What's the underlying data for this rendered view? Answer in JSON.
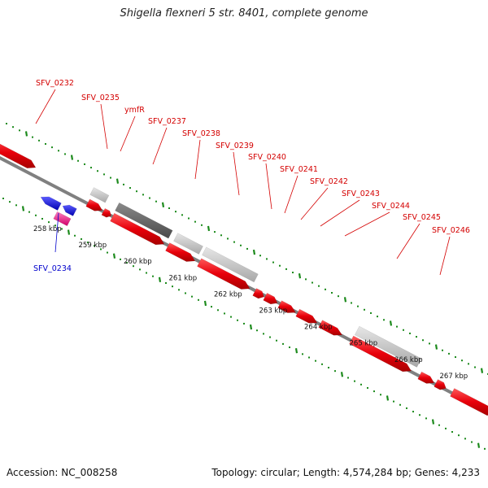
{
  "header": {
    "title": "Shigella flexneri 5 str. 8401, complete genome"
  },
  "footer": {
    "accession": "Accession: NC_008258",
    "stats": "Topology: circular; Length: 4,574,284 bp; Genes: 4,233"
  },
  "colors": {
    "gene_forward": "#e8000b",
    "gene_reverse": "#1a1aff",
    "rna": "#ff3399",
    "pseudogene_light": "#c0c0c0",
    "pseudogene_dark": "#6e6e6e",
    "backbone": "#808080",
    "gc_marks": "#1c8a1c",
    "label_red": "#d40000",
    "label_blue": "#0000cc"
  },
  "ruler": {
    "unit": "kbp",
    "ticks": [
      "258 kbp",
      "259 kbp",
      "260 kbp",
      "261 kbp",
      "262 kbp",
      "263 kbp",
      "264 kbp",
      "265 kbp",
      "266 kbp",
      "267 kbp"
    ]
  },
  "gene_labels": [
    {
      "name": "SFV_0232",
      "color": "red"
    },
    {
      "name": "SFV_0235",
      "color": "red"
    },
    {
      "name": "ymfR",
      "color": "red"
    },
    {
      "name": "SFV_0237",
      "color": "red"
    },
    {
      "name": "SFV_0238",
      "color": "red"
    },
    {
      "name": "SFV_0239",
      "color": "red"
    },
    {
      "name": "SFV_0240",
      "color": "red"
    },
    {
      "name": "SFV_0241",
      "color": "red"
    },
    {
      "name": "SFV_0242",
      "color": "red"
    },
    {
      "name": "SFV_0243",
      "color": "red"
    },
    {
      "name": "SFV_0244",
      "color": "red"
    },
    {
      "name": "SFV_0245",
      "color": "red"
    },
    {
      "name": "SFV_0246",
      "color": "red"
    },
    {
      "name": "SFV_0234",
      "color": "blue"
    }
  ]
}
